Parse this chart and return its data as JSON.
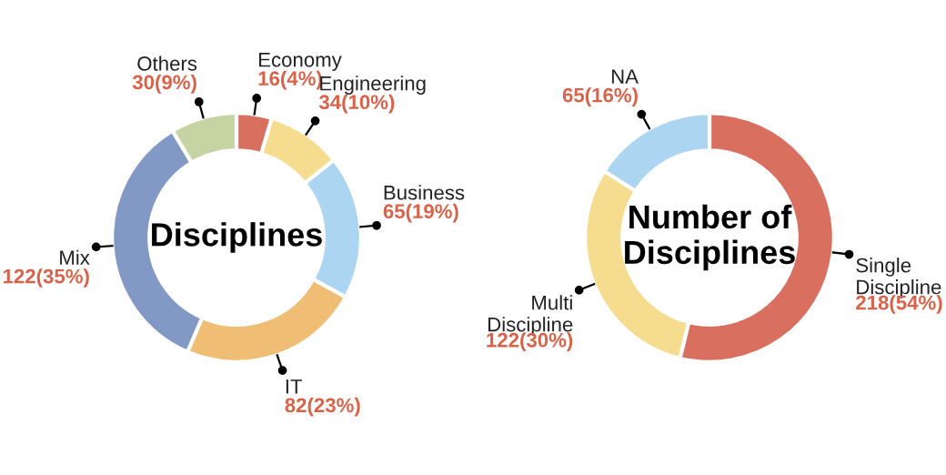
{
  "chart_data": [
    {
      "type": "donut",
      "title": "Disciplines",
      "categories": [
        "Economy",
        "Engineering",
        "Business",
        "IT",
        "Mix",
        "Others"
      ],
      "values": [
        16,
        34,
        65,
        82,
        122,
        30
      ],
      "value_labels": [
        "16(4%)",
        "34(10%)",
        "65(19%)",
        "82(23%)",
        "122(35%)",
        "30(9%)"
      ],
      "colors": [
        "#d9705f",
        "#f6dc8e",
        "#abd5f0",
        "#efbd74",
        "#8199c4",
        "#c6d3a2"
      ],
      "legend": false
    },
    {
      "type": "donut",
      "title": "Number of\nDisciplines",
      "categories": [
        "Single\nDiscipline",
        "Multi\nDiscipline",
        "NA"
      ],
      "values": [
        218,
        122,
        65
      ],
      "value_labels": [
        "218(54%)",
        "122(30%)",
        "65(16%)"
      ],
      "colors": [
        "#d9705f",
        "#f6dc8e",
        "#abd5f0"
      ],
      "legend": false
    }
  ]
}
